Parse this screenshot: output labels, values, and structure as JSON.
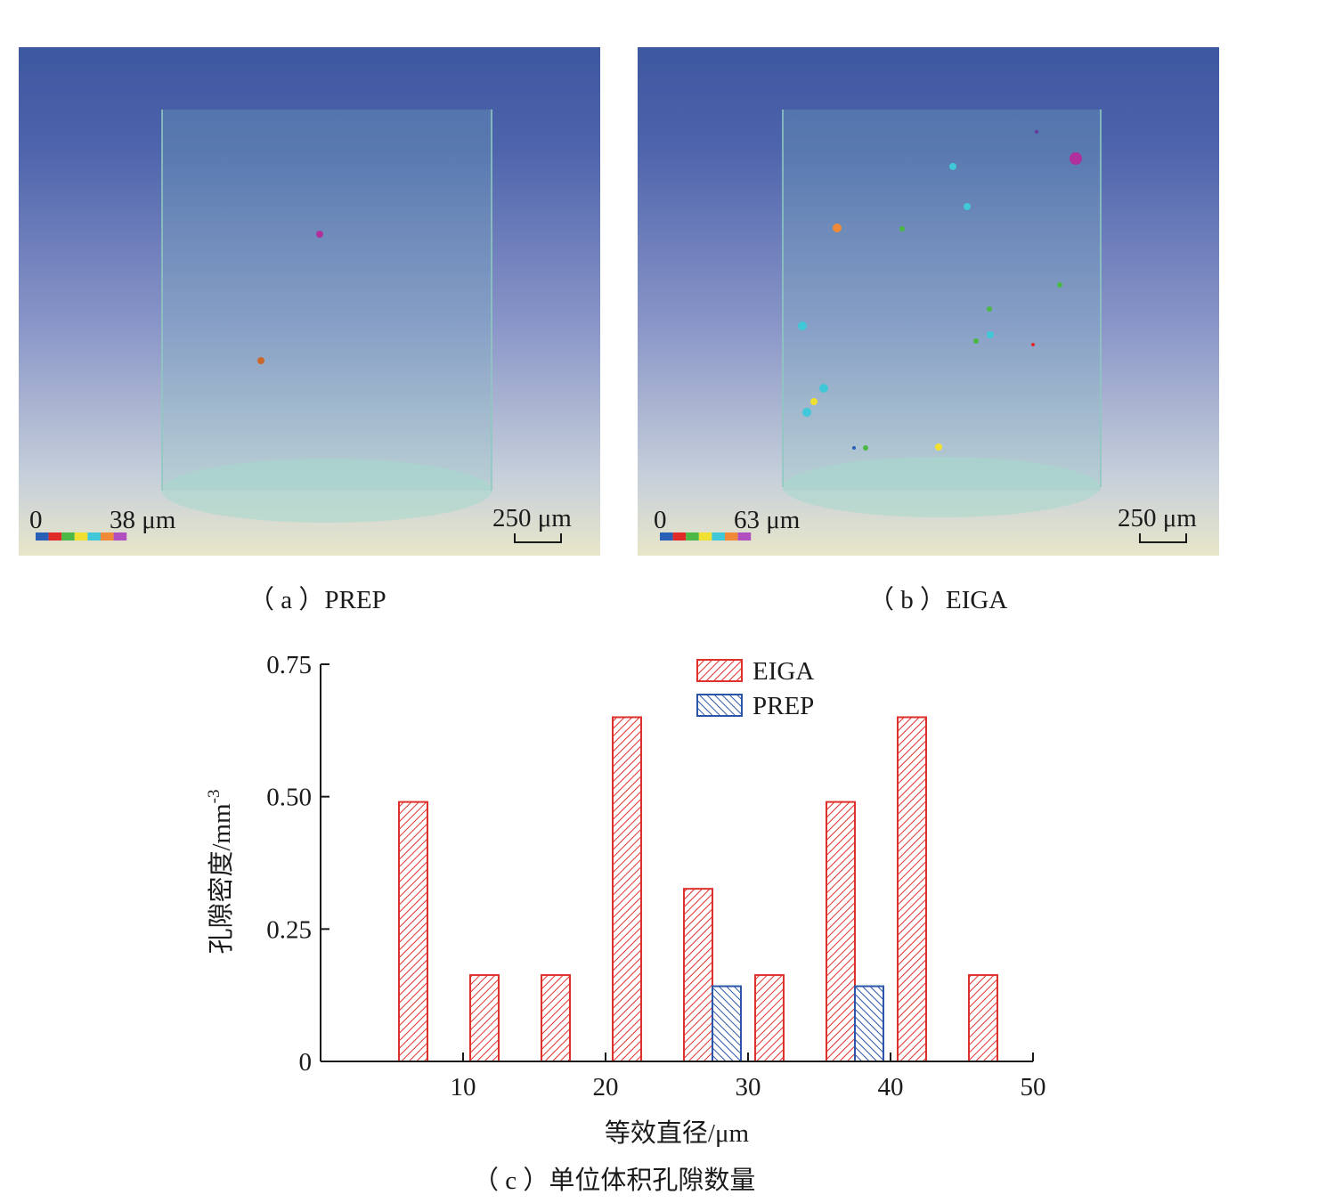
{
  "panels": [
    {
      "id": "a",
      "caption": "（ a ）PREP",
      "scale_min": "0",
      "scale_max": "38 μm",
      "scalebar": "250 μm",
      "colorbar": [
        "#2a5fb8",
        "#e02a2a",
        "#4bb845",
        "#f0e032",
        "#40c8d8",
        "#f08a38",
        "#b050c0"
      ]
    },
    {
      "id": "b",
      "caption": "（ b ）EIGA",
      "scale_min": "0",
      "scale_max": "63 μm",
      "scalebar": "250 μm",
      "colorbar": [
        "#2a5fb8",
        "#e02a2a",
        "#4bb845",
        "#f0e032",
        "#40c8d8",
        "#f08a38",
        "#b050c0"
      ]
    }
  ],
  "chart_caption": "（ c ）单位体积孔隙数量",
  "chart_data": {
    "type": "bar",
    "xlabel": "等效直径/μm",
    "ylabel": "孔隙密度/mm",
    "ylabel_superscript": "-3",
    "xlim": [
      0,
      50
    ],
    "ylim": [
      0,
      0.75
    ],
    "xticks": [
      10,
      20,
      30,
      40,
      50
    ],
    "xtick_labels": [
      "10",
      "20",
      "30",
      "40",
      "50"
    ],
    "yticks": [
      0,
      0.25,
      0.5,
      0.75
    ],
    "ytick_labels": [
      "0",
      "0.25",
      "0.50",
      "0.75"
    ],
    "legend_position": "top-center",
    "series": [
      {
        "name": "EIGA",
        "color": "#e0302a",
        "x": [
          6.5,
          11.5,
          16.5,
          21.5,
          26.5,
          31.5,
          36.5,
          41.5,
          46.5
        ],
        "values": [
          0.49,
          0.163,
          0.163,
          0.65,
          0.326,
          0.163,
          0.49,
          0.65,
          0.163
        ]
      },
      {
        "name": "PREP",
        "color": "#2a55a8",
        "x": [
          28.5,
          38.5
        ],
        "values": [
          0.142,
          0.142
        ]
      }
    ]
  }
}
